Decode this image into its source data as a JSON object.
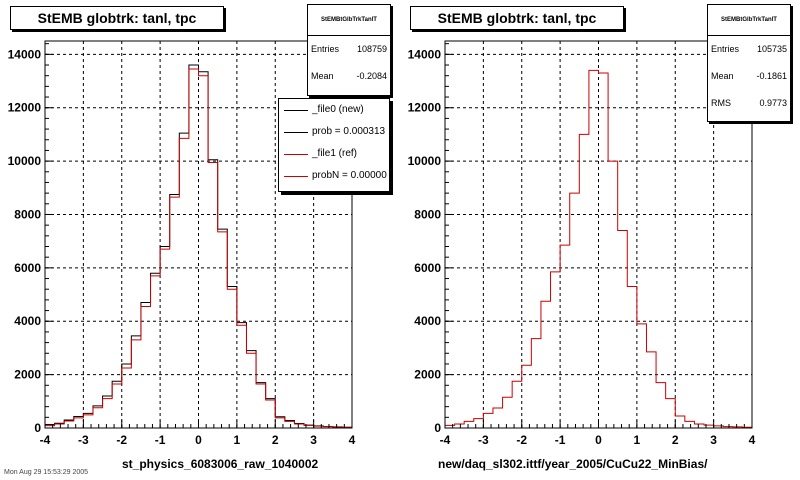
{
  "chart_data": [
    {
      "type": "histogram",
      "title": "StEMB globtrk: tanl, tpc",
      "xlabel": "st_physics_6083006_raw_1040002",
      "ylabel": "",
      "xlim": [
        -4,
        4
      ],
      "ylim": [
        0,
        14500
      ],
      "x_ticks": [
        "-4",
        "-3",
        "-2",
        "-1",
        "0",
        "1",
        "2",
        "3",
        "4"
      ],
      "y_ticks": [
        "0",
        "2000",
        "4000",
        "6000",
        "8000",
        "10000",
        "12000",
        "14000"
      ],
      "grid": true,
      "bin_edges": [
        -4.0,
        -3.75,
        -3.5,
        -3.25,
        -3.0,
        -2.75,
        -2.5,
        -2.25,
        -2.0,
        -1.75,
        -1.5,
        -1.25,
        -1.0,
        -0.75,
        -0.5,
        -0.25,
        0.0,
        0.25,
        0.5,
        0.75,
        1.0,
        1.25,
        1.5,
        1.75,
        2.0,
        2.25,
        2.5,
        2.75,
        3.0,
        3.25,
        3.5,
        3.75,
        4.0
      ],
      "series": [
        {
          "name": "_file0 (new)",
          "color": "#000000",
          "values": [
            130,
            180,
            300,
            430,
            550,
            830,
            1200,
            1750,
            2400,
            3450,
            4700,
            5800,
            6800,
            8750,
            11050,
            13600,
            13350,
            10050,
            7450,
            5300,
            3950,
            2900,
            1700,
            1100,
            420,
            280,
            170,
            110,
            80,
            55,
            40,
            30
          ]
        },
        {
          "name": "_file1 (ref)",
          "color": "#cc0000",
          "values": [
            90,
            150,
            260,
            380,
            490,
            760,
            1100,
            1650,
            2250,
            3300,
            4550,
            5700,
            6700,
            8650,
            10850,
            13450,
            13200,
            9950,
            7350,
            5200,
            3850,
            2800,
            1650,
            1050,
            380,
            250,
            150,
            100,
            70,
            50,
            35,
            25
          ]
        }
      ],
      "stats": {
        "name": "StEMBtGlbTrkTanlT",
        "entries_label": "Entries",
        "entries": "108759",
        "mean_label": "Mean",
        "mean": "-0.2084"
      },
      "legend": [
        {
          "label": "_file0 (new)",
          "color": "#000000"
        },
        {
          "label": "prob = 0.000313",
          "color": "#000000"
        },
        {
          "label": "_file1 (ref)",
          "color": "#cc0000"
        },
        {
          "label": "probN = 0.00000",
          "color": "#cc0000"
        }
      ]
    },
    {
      "type": "histogram",
      "title": "StEMB globtrk: tanl, tpc",
      "xlabel": "new/daq_sl302.ittf/year_2005/CuCu22_MinBias/",
      "ylabel": "",
      "xlim": [
        -4,
        4
      ],
      "ylim": [
        0,
        14500
      ],
      "x_ticks": [
        "-4",
        "-3",
        "-2",
        "-1",
        "0",
        "1",
        "2",
        "3",
        "4"
      ],
      "y_ticks": [
        "0",
        "2000",
        "4000",
        "6000",
        "8000",
        "10000",
        "12000",
        "14000"
      ],
      "grid": true,
      "bin_edges": [
        -4.0,
        -3.75,
        -3.5,
        -3.25,
        -3.0,
        -2.75,
        -2.5,
        -2.25,
        -2.0,
        -1.75,
        -1.5,
        -1.25,
        -1.0,
        -0.75,
        -0.5,
        -0.25,
        0.0,
        0.25,
        0.5,
        0.75,
        1.0,
        1.25,
        1.5,
        1.75,
        2.0,
        2.25,
        2.5,
        2.75,
        3.0,
        3.25,
        3.5,
        3.75,
        4.0
      ],
      "series": [
        {
          "color": "#cc0000",
          "values": [
            100,
            150,
            250,
            350,
            550,
            750,
            1150,
            1750,
            2350,
            3350,
            4750,
            5850,
            6850,
            8800,
            11000,
            13400,
            13300,
            10000,
            7400,
            5300,
            3900,
            2850,
            1700,
            1100,
            450,
            250,
            150,
            110,
            80,
            50,
            40,
            30
          ]
        }
      ],
      "stats": {
        "name": "StEMBtGlbTrkTanlT",
        "entries_label": "Entries",
        "entries": "105735",
        "mean_label": "Mean",
        "mean": "-0.1861",
        "rms_label": "RMS",
        "rms": "0.9773"
      }
    }
  ],
  "footer": "Mon Aug 29 15:53:29 2005"
}
